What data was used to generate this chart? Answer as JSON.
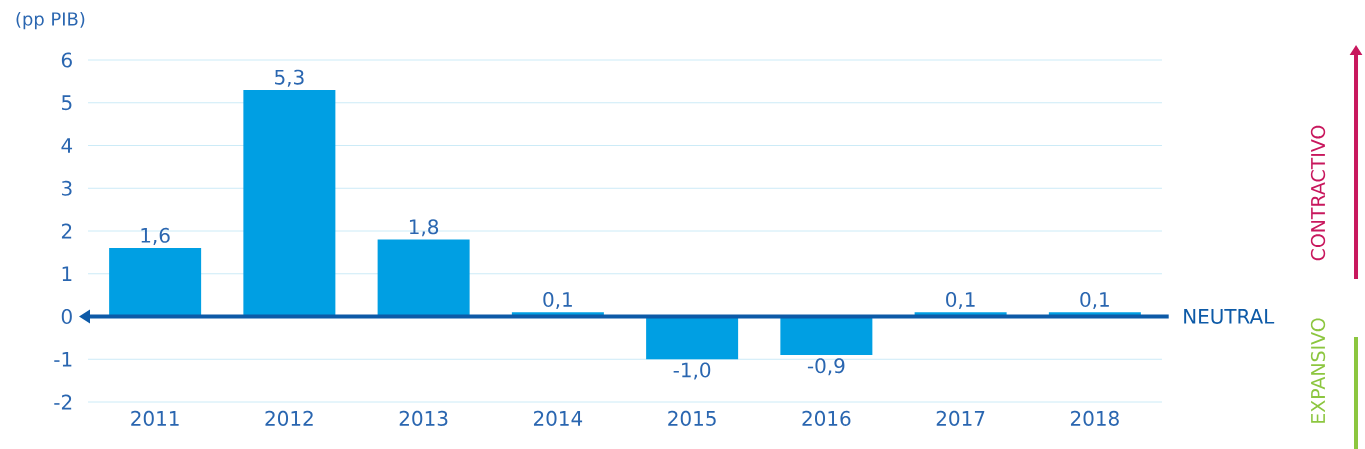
{
  "chart_data": {
    "type": "bar",
    "ylabel": "(pp PIB)",
    "categories": [
      "2011",
      "2012",
      "2013",
      "2014",
      "2015",
      "2016",
      "2017",
      "2018"
    ],
    "values": [
      1.6,
      5.3,
      1.8,
      0.1,
      -1.0,
      -0.9,
      0.1,
      0.1
    ],
    "value_labels": [
      "1,6",
      "5,3",
      "1,8",
      "0,1",
      "-1,0",
      "-0,9",
      "0,1",
      "0,1"
    ],
    "color": "#009fe3",
    "ylim": [
      -2,
      6
    ],
    "yticks": [
      -2,
      -1,
      0,
      1,
      2,
      3,
      4,
      5,
      6
    ],
    "grid": "y",
    "ref_lines": [
      {
        "axis": "y",
        "value": 0,
        "label": "NEUTRAL",
        "color": "#0d5aa7"
      }
    ],
    "annotations": [
      "CONTRACTIVO",
      "EXPANSIVO"
    ]
  }
}
